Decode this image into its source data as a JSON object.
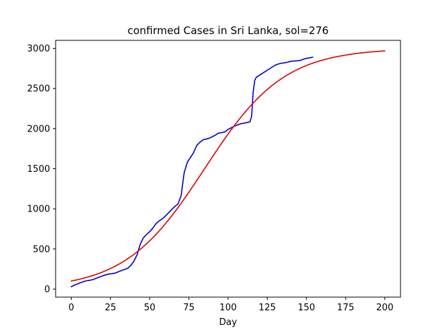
{
  "chart_data": {
    "type": "line",
    "title": "confirmed Cases in Sri Lanka, sol=276",
    "xlabel": "Day",
    "ylabel": "",
    "xlim": [
      -10,
      210
    ],
    "ylim": [
      -100,
      3100
    ],
    "xticks": [
      0,
      25,
      50,
      75,
      100,
      125,
      150,
      175,
      200
    ],
    "yticks": [
      0,
      500,
      1000,
      1500,
      2000,
      2500,
      3000
    ],
    "grid": false,
    "series": [
      {
        "color": "#0000cc",
        "points": [
          [
            0,
            30
          ],
          [
            2,
            50
          ],
          [
            4,
            65
          ],
          [
            6,
            80
          ],
          [
            8,
            95
          ],
          [
            10,
            105
          ],
          [
            12,
            110
          ],
          [
            14,
            120
          ],
          [
            16,
            135
          ],
          [
            18,
            150
          ],
          [
            20,
            165
          ],
          [
            22,
            178
          ],
          [
            24,
            188
          ],
          [
            26,
            192
          ],
          [
            28,
            200
          ],
          [
            30,
            215
          ],
          [
            32,
            232
          ],
          [
            34,
            245
          ],
          [
            36,
            260
          ],
          [
            38,
            295
          ],
          [
            40,
            350
          ],
          [
            42,
            430
          ],
          [
            44,
            560
          ],
          [
            46,
            640
          ],
          [
            48,
            680
          ],
          [
            50,
            715
          ],
          [
            52,
            760
          ],
          [
            54,
            815
          ],
          [
            56,
            850
          ],
          [
            58,
            875
          ],
          [
            60,
            910
          ],
          [
            62,
            950
          ],
          [
            64,
            990
          ],
          [
            66,
            1030
          ],
          [
            68,
            1060
          ],
          [
            70,
            1160
          ],
          [
            72,
            1450
          ],
          [
            74,
            1580
          ],
          [
            76,
            1640
          ],
          [
            78,
            1700
          ],
          [
            80,
            1790
          ],
          [
            82,
            1830
          ],
          [
            84,
            1860
          ],
          [
            86,
            1870
          ],
          [
            88,
            1880
          ],
          [
            90,
            1900
          ],
          [
            92,
            1920
          ],
          [
            94,
            1945
          ],
          [
            96,
            1950
          ],
          [
            98,
            1960
          ],
          [
            100,
            1990
          ],
          [
            102,
            2010
          ],
          [
            104,
            2030
          ],
          [
            106,
            2045
          ],
          [
            108,
            2060
          ],
          [
            110,
            2068
          ],
          [
            112,
            2075
          ],
          [
            114,
            2085
          ],
          [
            115,
            2150
          ],
          [
            116,
            2450
          ],
          [
            117,
            2600
          ],
          [
            118,
            2640
          ],
          [
            120,
            2665
          ],
          [
            122,
            2690
          ],
          [
            124,
            2715
          ],
          [
            126,
            2740
          ],
          [
            128,
            2765
          ],
          [
            130,
            2790
          ],
          [
            132,
            2805
          ],
          [
            134,
            2815
          ],
          [
            136,
            2820
          ],
          [
            138,
            2828
          ],
          [
            140,
            2838
          ],
          [
            142,
            2843
          ],
          [
            144,
            2845
          ],
          [
            146,
            2850
          ],
          [
            148,
            2865
          ],
          [
            150,
            2875
          ],
          [
            152,
            2882
          ],
          [
            154,
            2890
          ]
        ]
      },
      {
        "color": "#dd0000",
        "model": {
          "form": "logistic",
          "carrying_capacity": 3000,
          "midpoint_day": 85,
          "growth_rate": 0.0395,
          "x_start": 0,
          "x_end": 200
        }
      }
    ]
  }
}
